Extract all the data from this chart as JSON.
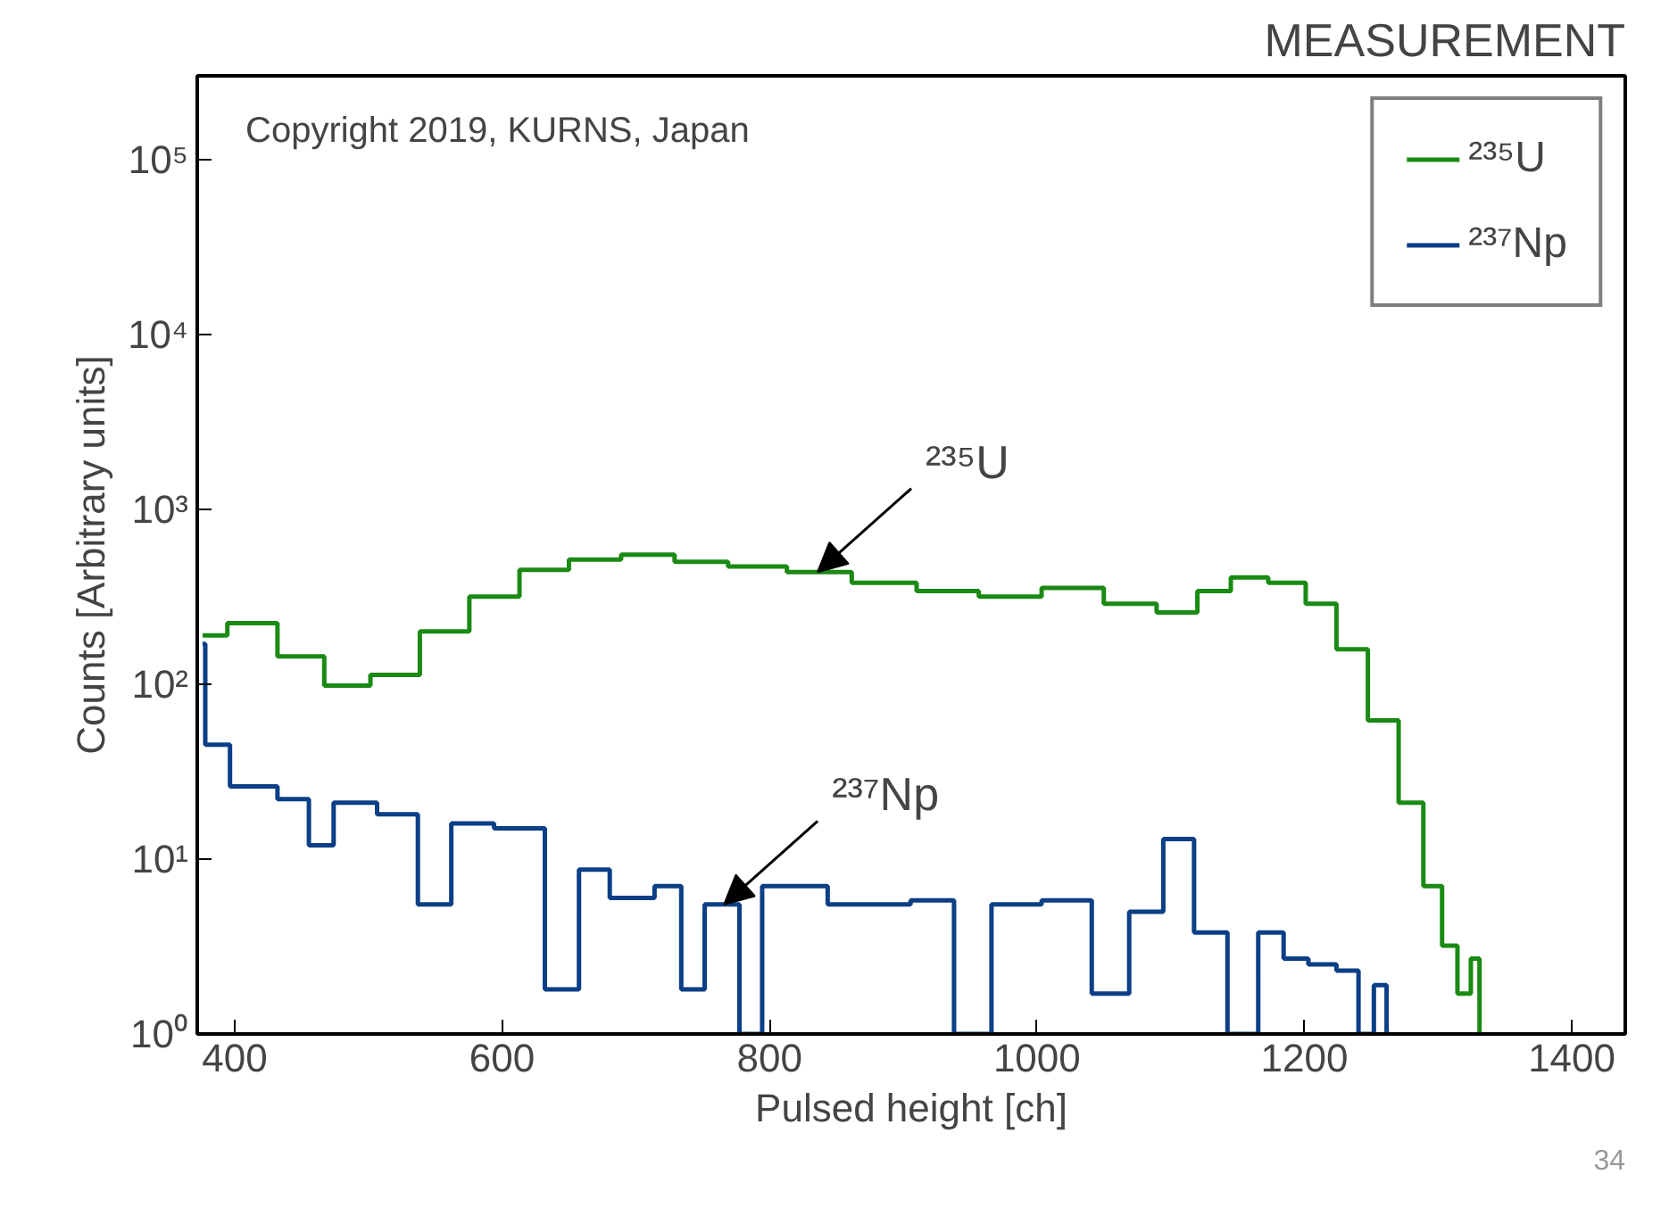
{
  "chart_data": {
    "type": "step",
    "title": "MEASUREMENT",
    "xlabel": "Pulsed height [ch]",
    "ylabel": "Counts [Arbitrary units]",
    "xlim": [
      372,
      1440
    ],
    "xticks": [
      400,
      600,
      800,
      1000,
      1200,
      1400
    ],
    "ylim": [
      1,
      300000
    ],
    "log": "y",
    "yticks": [
      {
        "value": 1,
        "label": "10⁰"
      },
      {
        "value": 10,
        "label": "10¹"
      },
      {
        "value": 100,
        "label": "10²"
      },
      {
        "value": 1000,
        "label": "10³"
      },
      {
        "value": 10000,
        "label": "10⁴"
      },
      {
        "value": 100000,
        "label": "10⁵"
      }
    ],
    "grid": false,
    "legend": "top right",
    "series": [
      {
        "name": "²³⁵U",
        "color": "#1a8a14",
        "x": [
          376,
          413,
          451,
          483,
          520,
          557,
          594,
          632,
          668,
          710,
          748,
          790,
          836,
          887,
          933,
          980,
          1027,
          1073,
          1106,
          1134,
          1156,
          1190,
          1212,
          1236,
          1259,
          1282,
          1296,
          1310,
          1319,
          1330,
          1332
        ],
        "values": [
          190,
          223,
          144,
          98,
          113,
          200,
          316,
          450,
          515,
          550,
          500,
          470,
          437,
          380,
          340,
          316,
          355,
          288,
          257,
          340,
          407,
          380,
          288,
          158,
          62,
          21,
          7,
          3.2,
          1.7,
          2.7,
          1
        ]
      },
      {
        "name": "²³⁷Np",
        "color": "#0b3f86",
        "x": [
          376,
          380,
          413,
          451,
          460,
          488,
          525,
          549,
          575,
          613,
          651,
          664,
          697,
          731,
          737,
          766,
          789,
          800,
          887,
          924,
          952,
          980,
          1027,
          1055,
          1083,
          1106,
          1129,
          1156,
          1175,
          1194,
          1212,
          1236,
          1245,
          1259,
          1264
        ],
        "values": [
          170,
          45,
          26,
          22,
          12,
          21,
          18,
          5.5,
          16,
          15,
          1.8,
          8.7,
          6,
          7,
          1.8,
          5.5,
          1,
          7,
          5.5,
          5.8,
          1,
          5.5,
          5.8,
          1.7,
          5,
          13,
          3.8,
          1,
          3.8,
          2.7,
          2.5,
          2.3,
          1,
          1.9,
          1
        ]
      }
    ],
    "annotations": [
      "Copyright 2019, KURNS, Japan",
      {
        "text": "²³⁵U",
        "x": 836,
        "y": 437
      },
      {
        "text": "²³⁷Np",
        "x": 766,
        "y": 5.5
      },
      "34"
    ]
  }
}
